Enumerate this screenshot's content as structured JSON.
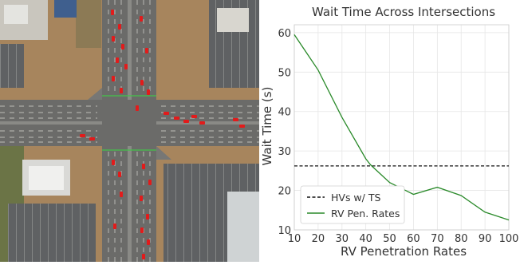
{
  "chart_data": {
    "type": "line",
    "title": "Wait Time Across Intersections",
    "xlabel": "RV Penetration Rates",
    "ylabel": "Wait Time (s)",
    "xlim": [
      10,
      100
    ],
    "ylim": [
      10,
      62
    ],
    "xticks": [
      10,
      20,
      30,
      40,
      50,
      60,
      70,
      80,
      90,
      100
    ],
    "yticks": [
      10,
      20,
      30,
      40,
      50,
      60
    ],
    "grid": true,
    "legend_position": "bottom-left",
    "series": [
      {
        "name": "HVs w/ TS",
        "style": "dashed",
        "color": "#111111",
        "x": [
          10,
          100
        ],
        "y": [
          26.2,
          26.2
        ]
      },
      {
        "name": "RV Pen. Rates",
        "style": "solid",
        "color": "#2a8a2a",
        "x": [
          10,
          20,
          30,
          40,
          42,
          50,
          60,
          70,
          80,
          90,
          100
        ],
        "y": [
          59.5,
          50.5,
          38.5,
          28,
          26.5,
          22,
          19,
          20.8,
          18.7,
          14.5,
          12.5
        ]
      }
    ]
  },
  "aerial_image": {
    "colors": {
      "ground": "#a7855d",
      "road": "#6b6b69",
      "lane_line": "#d8d8d2",
      "vehicle": "#e21b1b",
      "roof": "#cfd3d4",
      "vegetation": "#5b6a3b"
    }
  }
}
